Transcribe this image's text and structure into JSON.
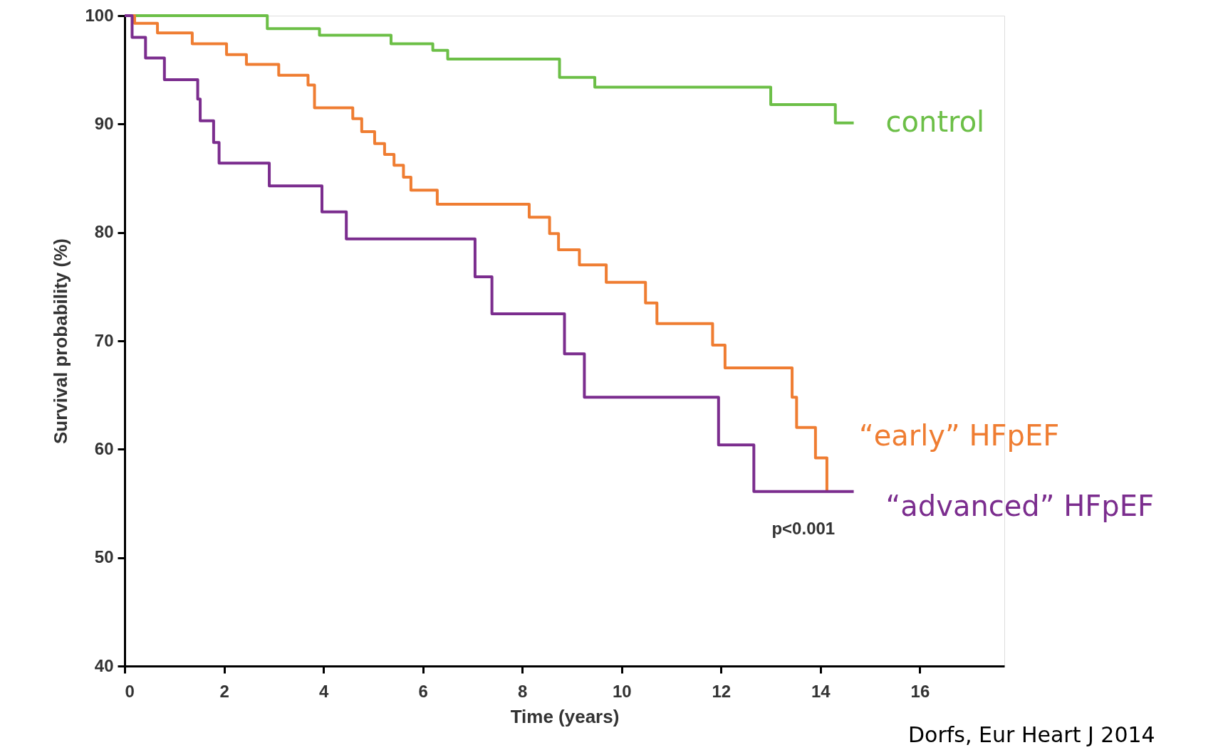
{
  "chart_data": {
    "type": "step",
    "xlabel": "Time (years)",
    "ylabel": "Survival probability (%)",
    "xlim": [
      0,
      17.7
    ],
    "xticks": [
      0,
      2,
      4,
      6,
      8,
      10,
      12,
      14,
      16
    ],
    "ylim": [
      40,
      100
    ],
    "yticks": [
      40,
      50,
      60,
      70,
      80,
      90,
      100
    ],
    "grid": false,
    "line_style": "solid",
    "marker": "none",
    "series": [
      {
        "name": "control",
        "color": "#6cbf47",
        "x": [
          0,
          2.87,
          3.92,
          5.36,
          6.2,
          6.5,
          8.75,
          9.46,
          13.0,
          14.3,
          14.67
        ],
        "values": [
          100,
          98.8,
          98.2,
          97.4,
          96.8,
          96.0,
          94.3,
          93.4,
          91.8,
          90.1,
          90.1
        ]
      },
      {
        "name": "“early” HFpEF",
        "color": "#ef7d32",
        "x": [
          0,
          0.2,
          0.66,
          1.36,
          2.05,
          2.45,
          3.1,
          3.69,
          3.82,
          4.59,
          4.77,
          5.03,
          5.23,
          5.42,
          5.61,
          5.76,
          6.29,
          8.14,
          8.55,
          8.73,
          9.15,
          9.69,
          10.48,
          10.71,
          11.83,
          12.08,
          13.43,
          13.52,
          13.9,
          14.13
        ],
        "values": [
          100,
          99.3,
          98.4,
          97.4,
          96.4,
          95.5,
          94.5,
          93.6,
          91.5,
          90.5,
          89.3,
          88.2,
          87.2,
          86.2,
          85.1,
          83.9,
          82.6,
          81.4,
          79.9,
          78.4,
          77.0,
          75.4,
          73.5,
          71.6,
          69.6,
          67.5,
          64.8,
          62.0,
          59.2,
          56.2
        ]
      },
      {
        "name": "“advanced” HFpEF",
        "color": "#7b2d8e",
        "x": [
          0,
          0.15,
          0.42,
          0.8,
          1.47,
          1.52,
          1.79,
          1.9,
          2.91,
          3.97,
          4.46,
          7.05,
          7.39,
          8.85,
          9.25,
          11.95,
          12.66,
          14.67
        ],
        "values": [
          100,
          98.0,
          96.1,
          94.1,
          92.3,
          90.3,
          88.3,
          86.4,
          84.3,
          81.9,
          79.4,
          75.9,
          72.5,
          68.8,
          64.8,
          60.4,
          56.1,
          56.1
        ]
      }
    ],
    "annotations": [
      "p<0.001",
      "Dorfs, Eur Heart J 2014"
    ]
  }
}
